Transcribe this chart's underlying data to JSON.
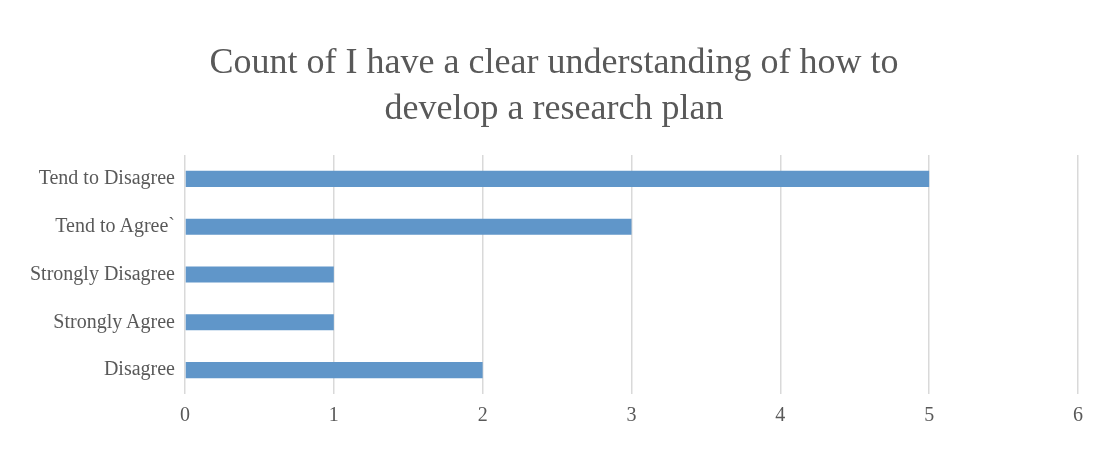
{
  "chart_data": {
    "type": "bar",
    "orientation": "horizontal",
    "title": "Count of I have a clear understanding of how to develop a research plan",
    "categories": [
      "Tend to Disagree",
      "Tend to Agree`",
      "Strongly Disagree",
      "Strongly Agree",
      "Disagree"
    ],
    "values": [
      5,
      3,
      1,
      1,
      2
    ],
    "color": "#6096c9",
    "xlim": [
      0,
      6
    ],
    "xticks": [
      0,
      1,
      2,
      3,
      4,
      5,
      6
    ],
    "grid": "x"
  }
}
